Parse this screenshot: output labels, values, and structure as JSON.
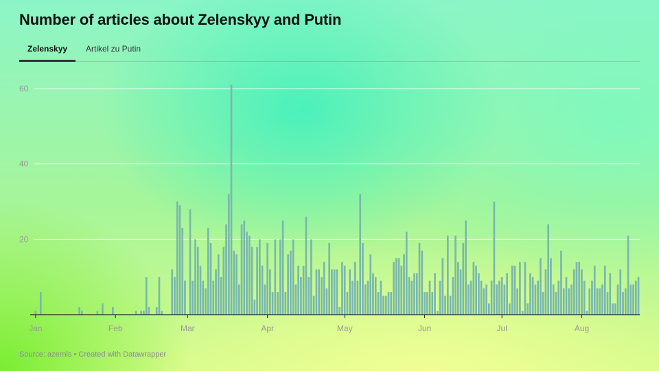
{
  "title": "Number of articles about Zelenskyy and Putin",
  "tabs": [
    {
      "label": "Zelenskyy",
      "active": true
    },
    {
      "label": "Artikel zu Putin",
      "active": false
    }
  ],
  "footer": "Source: azernis • Created with Datawrapper",
  "colors": {
    "bar": "#7ab8ac",
    "axis": "#222222",
    "grid": "#ffffff",
    "tick_text": "#999999"
  },
  "chart_data": {
    "type": "bar",
    "title": "Number of articles about Zelenskyy and Putin",
    "xlabel": "",
    "ylabel": "",
    "ylim": [
      0,
      60
    ],
    "yticks": [
      20,
      40,
      60
    ],
    "grid": true,
    "x_start": "Jan 1",
    "x_month_ticks": [
      {
        "label": "Jan",
        "day": 0
      },
      {
        "label": "Feb",
        "day": 31
      },
      {
        "label": "Mar",
        "day": 59
      },
      {
        "label": "Apr",
        "day": 90
      },
      {
        "label": "May",
        "day": 120
      },
      {
        "label": "Jun",
        "day": 151
      },
      {
        "label": "Jul",
        "day": 181
      },
      {
        "label": "Aug",
        "day": 212
      }
    ],
    "values": [
      1,
      0,
      6,
      0,
      0,
      0,
      0,
      0,
      0,
      0,
      0,
      0,
      0,
      0,
      0,
      0,
      0,
      2,
      1,
      0,
      0,
      0,
      0,
      0,
      1,
      0,
      3,
      0,
      0,
      0,
      2,
      0,
      0,
      0,
      0,
      0,
      0,
      0,
      0,
      1,
      0,
      1,
      1,
      10,
      2,
      0,
      0,
      2,
      10,
      1,
      0,
      0,
      0,
      12,
      10,
      30,
      29,
      23,
      9,
      0,
      28,
      9,
      20,
      18,
      13,
      9,
      7,
      23,
      19,
      9,
      12,
      16,
      10,
      18,
      24,
      32,
      61,
      17,
      16,
      8,
      24,
      25,
      22,
      21,
      18,
      4,
      18,
      20,
      13,
      8,
      19,
      12,
      6,
      20,
      6,
      20,
      25,
      6,
      16,
      17,
      20,
      8,
      13,
      10,
      13,
      26,
      10,
      20,
      5,
      12,
      12,
      10,
      14,
      7,
      19,
      12,
      12,
      12,
      2,
      14,
      13,
      6,
      12,
      9,
      14,
      9,
      32,
      19,
      8,
      9,
      16,
      11,
      10,
      6,
      9,
      5,
      5,
      6,
      6,
      14,
      15,
      15,
      13,
      16,
      22,
      10,
      9,
      11,
      11,
      19,
      17,
      6,
      6,
      9,
      6,
      11,
      1,
      9,
      15,
      5,
      21,
      5,
      10,
      21,
      14,
      12,
      19,
      25,
      8,
      9,
      14,
      13,
      11,
      9,
      7,
      8,
      3,
      9,
      30,
      8,
      9,
      10,
      8,
      11,
      3,
      13,
      13,
      7,
      14,
      1,
      14,
      3,
      11,
      10,
      8,
      9,
      15,
      6,
      12,
      24,
      15,
      8,
      6,
      9,
      17,
      7,
      10,
      7,
      8,
      12,
      14,
      14,
      12,
      9,
      1,
      7,
      9,
      13,
      7,
      7,
      8,
      13,
      6,
      11,
      3,
      3,
      8,
      12,
      6,
      7,
      21,
      8,
      8,
      9,
      10
    ]
  }
}
